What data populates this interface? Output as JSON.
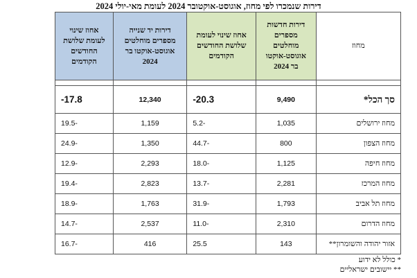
{
  "title": "דירות שנמכרו לפי מחוז, אוגוסט-אוקטובר 2024 לעומת מאי-יולי 2024",
  "headers": {
    "region": "מחוז",
    "new_dwellings": "דירות חדשות מספרים מוחלטים אוגוסט-אוקטו בר 2024",
    "new_change": "אחוז שינוי לעומת שלושת החודשים הקודמים",
    "second_hand": "דירות יד שנייה מספרים מוחלטים אוגוסט-אוקטו בר 2024",
    "second_change": "אחוז שינוי לעומת שלושת החודשים הקודמים"
  },
  "total": {
    "region": "סך הכל*",
    "new": "9,490",
    "new_change": "-20.3",
    "second": "12,340",
    "second_change": "-17.8"
  },
  "rows": [
    {
      "region": "מחוז ירושלים",
      "new": "1,035",
      "new_change": "5.2-",
      "second": "1,159",
      "second_change": "19.5-"
    },
    {
      "region": "מחוז הצפון",
      "new": "800",
      "new_change": "44.7-",
      "second": "1,350",
      "second_change": "24.9-"
    },
    {
      "region": "מחוז חיפה",
      "new": "1,125",
      "new_change": "18.0-",
      "second": "2,293",
      "second_change": "12.9-"
    },
    {
      "region": "מחוז המרכז",
      "new": "2,281",
      "new_change": "13.7-",
      "second": "2,823",
      "second_change": "19.4-"
    },
    {
      "region": "מחוז תל אביב",
      "new": "1,793",
      "new_change": "31.9-",
      "second": "1,763",
      "second_change": "18.9-"
    },
    {
      "region": "מחוז הדרום",
      "new": "2,310",
      "new_change": "11.0-",
      "second": "2,537",
      "second_change": "14.7-"
    },
    {
      "region": "אזור יהודה והשומרון**",
      "new": "143",
      "new_change": "25.5",
      "second": "416",
      "second_change": "16.7-"
    }
  ],
  "footnotes": {
    "note1": "* כולל לא ידוע",
    "note2": "** יישובים ישראליים"
  },
  "colors": {
    "green_header": "#d8e6bf",
    "blue_header": "#b9cde5"
  }
}
